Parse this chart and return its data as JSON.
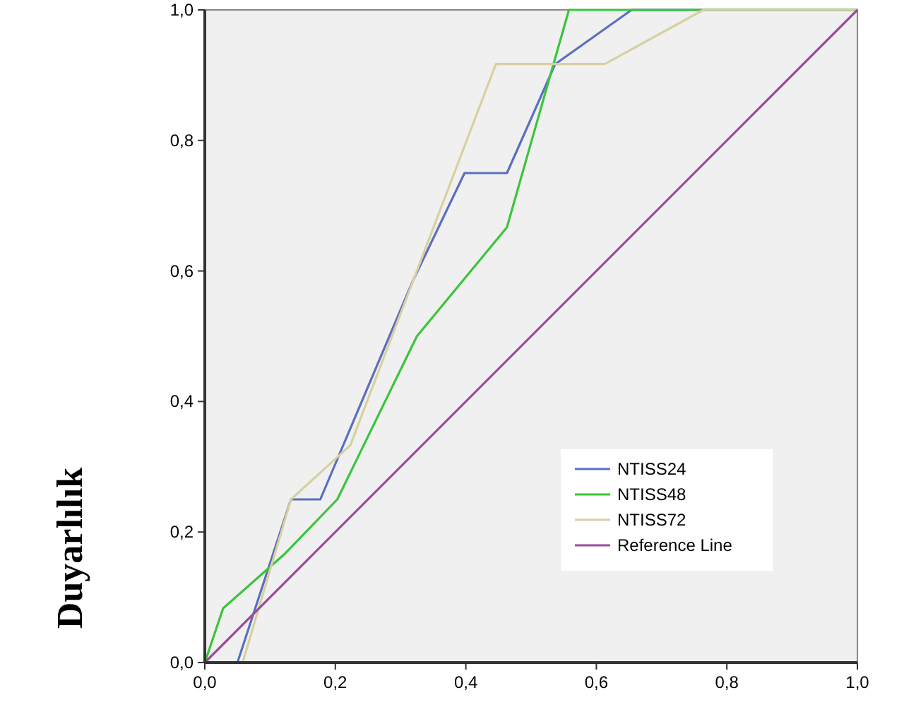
{
  "chart_data": {
    "type": "line",
    "ylabel": "Duyarlılık",
    "xlim": [
      0,
      1
    ],
    "ylim": [
      0,
      1
    ],
    "xticks": [
      {
        "value": 0,
        "label": "0,0"
      },
      {
        "value": 0.2,
        "label": "0,2"
      },
      {
        "value": 0.4,
        "label": "0,4"
      },
      {
        "value": 0.6,
        "label": "0,6"
      },
      {
        "value": 0.8,
        "label": "0,8"
      },
      {
        "value": 1,
        "label": "1,0"
      }
    ],
    "yticks": [
      {
        "value": 0,
        "label": "0,0"
      },
      {
        "value": 0.2,
        "label": "0,2"
      },
      {
        "value": 0.4,
        "label": "0,4"
      },
      {
        "value": 0.6,
        "label": "0,6"
      },
      {
        "value": 0.8,
        "label": "0,8"
      },
      {
        "value": 1,
        "label": "1,0"
      }
    ],
    "legend": "bottom right",
    "grid": false,
    "marker": "none",
    "series": [
      {
        "name": "NTISS24",
        "color": "#5b6fc0",
        "x": [
          0,
          0.05,
          0.132,
          0.177,
          0.318,
          0.398,
          0.463,
          0.537,
          0.654,
          1
        ],
        "values": [
          0,
          0,
          0.25,
          0.25,
          0.583,
          0.75,
          0.75,
          0.917,
          1,
          1
        ]
      },
      {
        "name": "NTISS48",
        "color": "#3cc43c",
        "x": [
          0,
          0.028,
          0.123,
          0.203,
          0.325,
          0.463,
          0.558,
          1
        ],
        "values": [
          0,
          0.083,
          0.167,
          0.25,
          0.5,
          0.667,
          1,
          1
        ]
      },
      {
        "name": "NTISS72",
        "color": "#d8d0a0",
        "x": [
          0,
          0.058,
          0.132,
          0.223,
          0.446,
          0.613,
          0.764,
          1
        ],
        "values": [
          0,
          0,
          0.25,
          0.333,
          0.917,
          0.917,
          1,
          1
        ]
      },
      {
        "name": "Reference Line",
        "color": "#9c4c9c",
        "x": [
          0,
          1
        ],
        "values": [
          0,
          1
        ]
      }
    ]
  }
}
